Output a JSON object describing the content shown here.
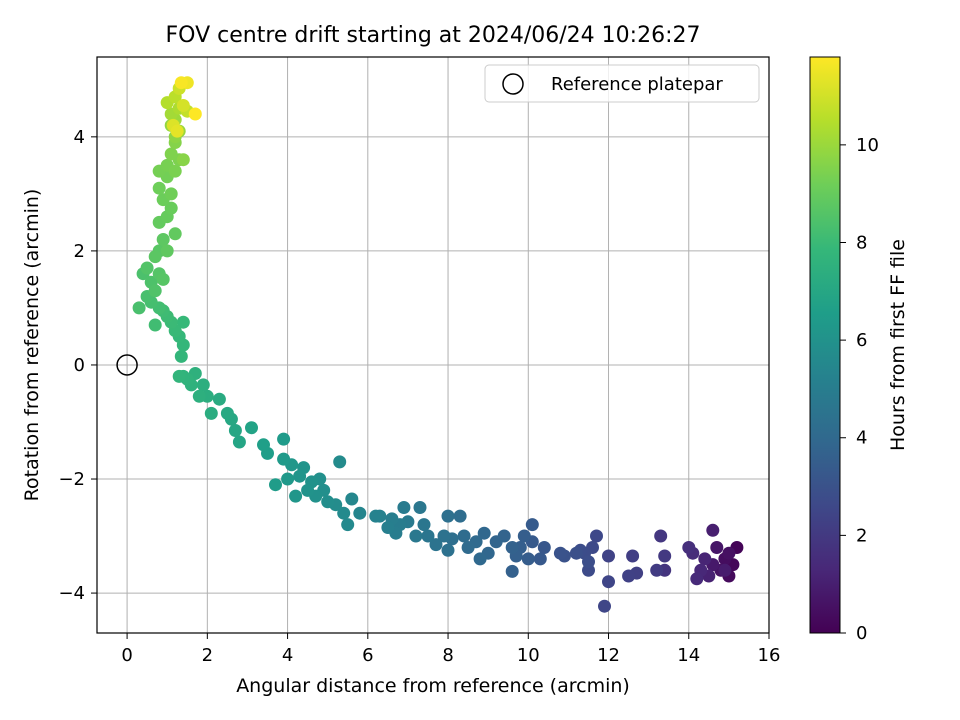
{
  "chart_data": {
    "type": "scatter",
    "title": "FOV centre drift starting at 2024/06/24 10:26:27",
    "xlabel": "Angular distance from reference (arcmin)",
    "ylabel": "Rotation from reference (arcmin)",
    "xlim": [
      -0.75,
      16
    ],
    "ylim": [
      -4.7,
      5.4
    ],
    "xticks": [
      0,
      2,
      4,
      6,
      8,
      10,
      12,
      14,
      16
    ],
    "yticks": [
      -4,
      -2,
      0,
      2,
      4
    ],
    "xtick_labels": [
      "0",
      "2",
      "4",
      "6",
      "8",
      "10",
      "12",
      "14",
      "16"
    ],
    "ytick_labels": [
      "−4",
      "−2",
      "0",
      "2",
      "4"
    ],
    "grid": true,
    "legend": {
      "position": "upper-right",
      "label": "Reference platepar"
    },
    "reference_point": {
      "x": 0,
      "y": 0
    },
    "colorbar": {
      "label": "Hours from first FF file",
      "colormap": "viridis",
      "range": [
        0,
        11.8
      ],
      "ticks": [
        0,
        2,
        4,
        6,
        8,
        10
      ],
      "tick_labels": [
        "0",
        "2",
        "4",
        "6",
        "8",
        "10"
      ],
      "colors": [
        "#440154",
        "#482878",
        "#3e4989",
        "#31688e",
        "#26828e",
        "#1f9e89",
        "#35b779",
        "#6ece58",
        "#b5de2b",
        "#fde725"
      ]
    },
    "points_format": "[x, y, hours]",
    "points": [
      [
        15.2,
        -3.2,
        0.1
      ],
      [
        15.1,
        -3.5,
        0.2
      ],
      [
        15.0,
        -3.7,
        0.3
      ],
      [
        14.9,
        -3.4,
        0.4
      ],
      [
        15.0,
        -3.3,
        0.5
      ],
      [
        14.8,
        -3.6,
        0.6
      ],
      [
        14.7,
        -3.2,
        0.7
      ],
      [
        14.6,
        -3.5,
        0.8
      ],
      [
        14.9,
        -3.6,
        0.9
      ],
      [
        14.6,
        -2.9,
        1.0
      ],
      [
        14.5,
        -3.7,
        1.1
      ],
      [
        14.4,
        -3.4,
        1.2
      ],
      [
        14.3,
        -3.6,
        1.3
      ],
      [
        14.2,
        -3.75,
        1.4
      ],
      [
        14.1,
        -3.3,
        1.5
      ],
      [
        14.0,
        -3.2,
        1.6
      ],
      [
        13.4,
        -3.6,
        1.8
      ],
      [
        13.3,
        -3.0,
        1.9
      ],
      [
        13.4,
        -3.35,
        2.0
      ],
      [
        13.2,
        -3.6,
        2.05
      ],
      [
        12.6,
        -3.35,
        2.2
      ],
      [
        12.7,
        -3.65,
        2.25
      ],
      [
        12.5,
        -3.7,
        2.3
      ],
      [
        12.0,
        -3.35,
        2.4
      ],
      [
        12.0,
        -3.8,
        2.45
      ],
      [
        11.9,
        -4.23,
        2.5
      ],
      [
        11.7,
        -3.0,
        2.6
      ],
      [
        11.6,
        -3.2,
        2.65
      ],
      [
        11.5,
        -3.6,
        2.7
      ],
      [
        11.4,
        -3.3,
        2.75
      ],
      [
        11.3,
        -3.25,
        2.8
      ],
      [
        11.5,
        -3.45,
        2.85
      ],
      [
        11.2,
        -3.3,
        2.9
      ],
      [
        10.9,
        -3.35,
        3.0
      ],
      [
        10.8,
        -3.3,
        3.05
      ],
      [
        10.4,
        -3.2,
        3.2
      ],
      [
        10.3,
        -3.4,
        3.3
      ],
      [
        10.1,
        -3.1,
        3.35
      ],
      [
        10.1,
        -2.8,
        3.4
      ],
      [
        10.0,
        -3.4,
        3.45
      ],
      [
        9.9,
        -3.0,
        3.5
      ],
      [
        9.8,
        -3.2,
        3.55
      ],
      [
        9.7,
        -3.35,
        3.6
      ],
      [
        9.6,
        -3.62,
        3.65
      ],
      [
        9.6,
        -3.2,
        3.7
      ],
      [
        9.4,
        -3.0,
        3.75
      ],
      [
        9.2,
        -3.1,
        3.8
      ],
      [
        9.0,
        -3.3,
        3.9
      ],
      [
        8.9,
        -2.95,
        3.95
      ],
      [
        8.8,
        -3.4,
        4.0
      ],
      [
        8.7,
        -3.1,
        4.05
      ],
      [
        8.5,
        -3.2,
        4.1
      ],
      [
        8.4,
        -3.0,
        4.15
      ],
      [
        8.3,
        -2.65,
        4.2
      ],
      [
        8.1,
        -3.05,
        4.3
      ],
      [
        8.0,
        -2.65,
        4.35
      ],
      [
        8.0,
        -3.25,
        4.4
      ],
      [
        7.9,
        -3.0,
        4.45
      ],
      [
        7.7,
        -3.15,
        4.5
      ],
      [
        7.5,
        -3.0,
        4.6
      ],
      [
        7.4,
        -2.8,
        4.65
      ],
      [
        7.3,
        -2.5,
        4.7
      ],
      [
        7.2,
        -3.0,
        4.75
      ],
      [
        7.0,
        -2.75,
        4.85
      ],
      [
        6.9,
        -2.5,
        4.9
      ],
      [
        6.8,
        -2.8,
        4.95
      ],
      [
        6.7,
        -2.95,
        5.0
      ],
      [
        6.6,
        -2.7,
        5.05
      ],
      [
        6.5,
        -2.85,
        5.1
      ],
      [
        6.3,
        -2.65,
        5.2
      ],
      [
        6.2,
        -2.65,
        5.25
      ],
      [
        5.8,
        -2.6,
        5.4
      ],
      [
        5.6,
        -2.35,
        5.5
      ],
      [
        5.5,
        -2.8,
        5.55
      ],
      [
        5.4,
        -2.6,
        5.6
      ],
      [
        5.3,
        -1.7,
        5.65
      ],
      [
        5.2,
        -2.45,
        5.7
      ],
      [
        5.0,
        -2.4,
        5.8
      ],
      [
        4.9,
        -2.2,
        5.85
      ],
      [
        4.8,
        -2.0,
        5.9
      ],
      [
        4.7,
        -2.3,
        5.95
      ],
      [
        4.6,
        -2.05,
        6.0
      ],
      [
        4.5,
        -2.2,
        6.05
      ],
      [
        4.4,
        -1.8,
        6.1
      ],
      [
        4.3,
        -1.95,
        6.15
      ],
      [
        4.2,
        -2.3,
        6.2
      ],
      [
        4.1,
        -1.75,
        6.25
      ],
      [
        4.0,
        -2.0,
        6.3
      ],
      [
        3.9,
        -1.65,
        6.35
      ],
      [
        3.9,
        -1.3,
        6.4
      ],
      [
        3.7,
        -2.1,
        6.45
      ],
      [
        3.5,
        -1.55,
        6.55
      ],
      [
        3.4,
        -1.4,
        6.6
      ],
      [
        3.1,
        -1.1,
        6.8
      ],
      [
        2.8,
        -1.35,
        6.9
      ],
      [
        2.7,
        -1.15,
        7.0
      ],
      [
        2.6,
        -0.95,
        7.05
      ],
      [
        2.5,
        -0.85,
        7.1
      ],
      [
        2.3,
        -0.6,
        7.2
      ],
      [
        2.1,
        -0.85,
        7.3
      ],
      [
        2.0,
        -0.55,
        7.35
      ],
      [
        1.9,
        -0.35,
        7.4
      ],
      [
        1.8,
        -0.55,
        7.45
      ],
      [
        1.7,
        -0.15,
        7.5
      ],
      [
        1.6,
        -0.35,
        7.55
      ],
      [
        1.5,
        -0.25,
        7.6
      ],
      [
        1.4,
        -0.2,
        7.65
      ],
      [
        1.3,
        -0.2,
        7.7
      ],
      [
        1.35,
        0.15,
        7.75
      ],
      [
        1.4,
        0.35,
        7.8
      ],
      [
        1.3,
        0.5,
        7.85
      ],
      [
        1.4,
        0.75,
        7.9
      ],
      [
        1.2,
        0.6,
        7.95
      ],
      [
        1.1,
        0.75,
        8.0
      ],
      [
        1.0,
        0.85,
        8.05
      ],
      [
        0.9,
        0.95,
        8.1
      ],
      [
        0.7,
        0.7,
        8.15
      ],
      [
        0.8,
        1.0,
        8.2
      ],
      [
        0.6,
        1.1,
        8.25
      ],
      [
        0.5,
        1.2,
        8.3
      ],
      [
        0.3,
        1.0,
        8.35
      ],
      [
        0.4,
        1.6,
        8.4
      ],
      [
        0.6,
        1.45,
        8.45
      ],
      [
        0.7,
        1.3,
        8.5
      ],
      [
        0.5,
        1.7,
        8.55
      ],
      [
        0.8,
        1.6,
        8.6
      ],
      [
        0.9,
        1.5,
        8.65
      ],
      [
        0.8,
        2.0,
        8.7
      ],
      [
        0.7,
        1.9,
        8.75
      ],
      [
        0.9,
        2.2,
        8.8
      ],
      [
        1.0,
        2.0,
        8.85
      ],
      [
        1.2,
        2.3,
        8.9
      ],
      [
        0.8,
        2.5,
        8.95
      ],
      [
        1.0,
        2.6,
        9.0
      ],
      [
        1.1,
        2.75,
        9.05
      ],
      [
        0.9,
        2.9,
        9.1
      ],
      [
        0.8,
        3.1,
        9.15
      ],
      [
        1.1,
        3.0,
        9.2
      ],
      [
        1.0,
        3.3,
        9.25
      ],
      [
        0.8,
        3.4,
        9.3
      ],
      [
        1.0,
        3.5,
        9.35
      ],
      [
        1.2,
        3.4,
        9.4
      ],
      [
        1.3,
        3.6,
        9.45
      ],
      [
        1.1,
        3.7,
        9.5
      ],
      [
        1.2,
        3.9,
        9.6
      ],
      [
        1.4,
        3.6,
        9.65
      ],
      [
        1.2,
        4.0,
        9.75
      ],
      [
        1.1,
        4.2,
        9.85
      ],
      [
        1.3,
        4.1,
        9.95
      ],
      [
        1.2,
        4.3,
        10.05
      ],
      [
        1.1,
        4.4,
        10.15
      ],
      [
        1.3,
        4.5,
        10.3
      ],
      [
        1.0,
        4.6,
        10.45
      ],
      [
        1.2,
        4.7,
        10.6
      ],
      [
        1.5,
        4.45,
        10.75
      ],
      [
        1.3,
        4.85,
        10.9
      ],
      [
        1.4,
        4.55,
        11.05
      ],
      [
        1.15,
        4.2,
        11.2
      ],
      [
        1.25,
        4.1,
        11.35
      ],
      [
        1.5,
        4.95,
        11.55
      ],
      [
        1.35,
        4.95,
        11.7
      ],
      [
        1.7,
        4.4,
        11.8
      ]
    ]
  }
}
